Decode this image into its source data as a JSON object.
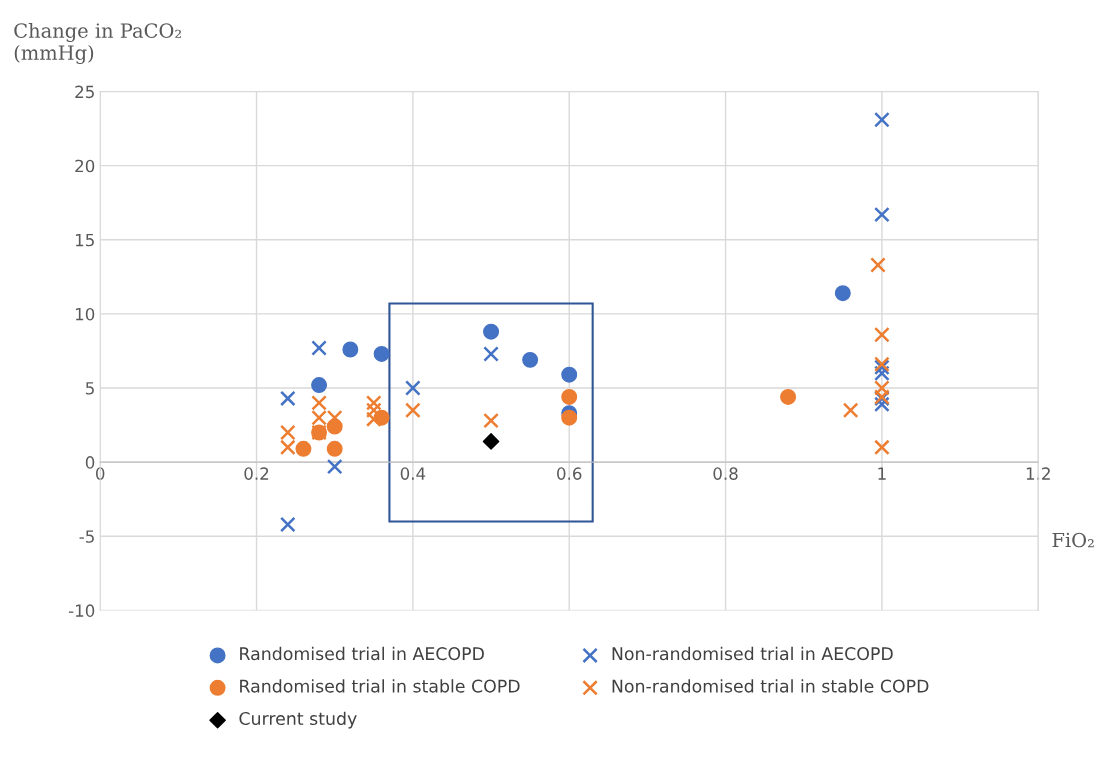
{
  "chart_data": {
    "type": "scatter",
    "xlabel": "FiO₂",
    "ylabel": "Change in PaCO₂ (mmHg)",
    "xlim": [
      0,
      1.2
    ],
    "xticks": [
      0,
      0.2,
      0.4,
      0.6,
      0.8,
      1,
      1.2
    ],
    "ylim": [
      -10,
      25
    ],
    "yticks": [
      -10,
      -5,
      0,
      5,
      10,
      15,
      20,
      25
    ],
    "grid": true,
    "legend": "bottom",
    "series": [
      {
        "name": "Randomised trial in AECOPD",
        "color": "#4472c4",
        "marker": "circle",
        "x": [
          0.28,
          0.32,
          0.36,
          0.5,
          0.55,
          0.6,
          0.6,
          0.95
        ],
        "values": [
          5.2,
          7.6,
          7.3,
          8.8,
          6.9,
          5.9,
          3.3,
          11.4
        ]
      },
      {
        "name": "Non-randomised trial in AECOPD",
        "color": "#4472c4",
        "marker": "cross",
        "x": [
          0.24,
          0.24,
          0.28,
          0.3,
          0.4,
          0.5,
          1.0,
          1.0,
          1.0,
          1.0,
          1.0,
          1.0
        ],
        "values": [
          4.3,
          -4.2,
          7.7,
          -0.3,
          5.0,
          7.3,
          23.1,
          16.7,
          6.4,
          6.0,
          4.3,
          3.9
        ]
      },
      {
        "name": "Randomised trial in stable COPD",
        "color": "#ed7d31",
        "marker": "circle",
        "x": [
          0.26,
          0.28,
          0.3,
          0.3,
          0.36,
          0.6,
          0.6,
          0.88
        ],
        "values": [
          0.9,
          2.0,
          2.4,
          0.9,
          3.0,
          4.4,
          3.0,
          4.4
        ]
      },
      {
        "name": "Non-randomised trial in stable COPD",
        "color": "#ed7d31",
        "marker": "cross",
        "x": [
          0.24,
          0.24,
          0.28,
          0.28,
          0.28,
          0.3,
          0.35,
          0.35,
          0.35,
          0.4,
          0.5,
          0.96,
          0.995,
          1.0,
          1.0,
          1.0,
          1.0,
          1.0
        ],
        "values": [
          2.0,
          1.0,
          4.0,
          3.0,
          2.0,
          3.0,
          4.0,
          3.5,
          2.9,
          3.5,
          2.8,
          3.5,
          13.3,
          8.6,
          6.6,
          5.0,
          4.4,
          1.0
        ]
      },
      {
        "name": "Current study",
        "color": "#000000",
        "marker": "diamond",
        "x": [
          0.5
        ],
        "values": [
          1.4
        ]
      }
    ]
  }
}
